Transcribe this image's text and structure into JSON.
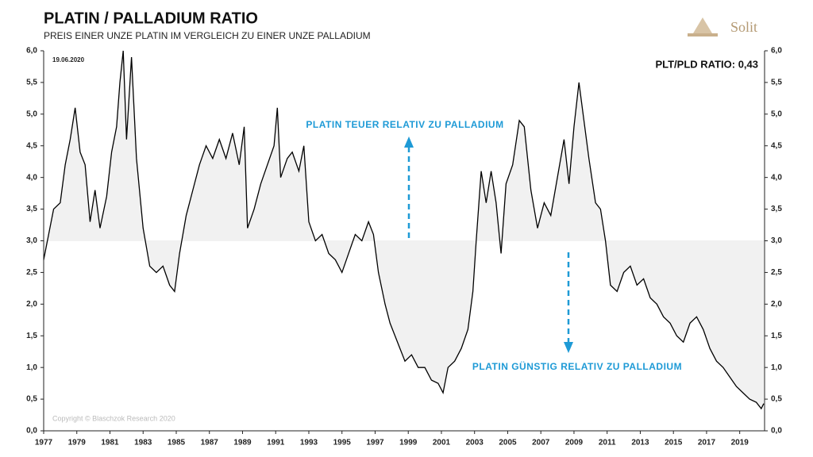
{
  "chart_data": {
    "type": "line",
    "title": "PLATIN / PALLADIUM RATIO",
    "subtitle": "PREIS EINER UNZE PLATIN IM VERGLEICH ZU EINER UNZE PALLADIUM",
    "date": "19.06.2020",
    "ratio_label": "PLT/PLD RATIO: 0,43",
    "copyright": "Copyright © Blaschzok Research 2020",
    "logo": "Solit",
    "annotations": [
      "PLATIN TEUER RELATIV ZU PALLADIUM",
      "PLATIN GÜNSTIG RELATIV ZU PALLADIUM"
    ],
    "annotation_color": "#1e9ad6",
    "fill_baseline": 3,
    "fill_color": "#f1f1f1",
    "xlim": [
      1977,
      2020.5
    ],
    "xticks": [
      1977,
      1979,
      1981,
      1983,
      1985,
      1987,
      1989,
      1991,
      1993,
      1995,
      1997,
      1999,
      2001,
      2003,
      2005,
      2007,
      2009,
      2011,
      2013,
      2015,
      2017,
      2019
    ],
    "ylim": [
      0,
      6
    ],
    "yticks": [
      {
        "value": 0,
        "label": "0,0"
      },
      {
        "value": 0.5,
        "label": "0,5"
      },
      {
        "value": 1,
        "label": "1,0"
      },
      {
        "value": 1.5,
        "label": "1,5"
      },
      {
        "value": 2,
        "label": "2,0"
      },
      {
        "value": 2.5,
        "label": "2,5"
      },
      {
        "value": 3,
        "label": "3,0"
      },
      {
        "value": 3.5,
        "label": "3,5"
      },
      {
        "value": 4,
        "label": "4,0"
      },
      {
        "value": 4.5,
        "label": "4,5"
      },
      {
        "value": 5,
        "label": "5,0"
      },
      {
        "value": 5.5,
        "label": "5,5"
      },
      {
        "value": 6,
        "label": "6,0"
      }
    ],
    "series": [
      {
        "color": "#000000",
        "x": [
          1977.0,
          1977.3,
          1977.6,
          1978.0,
          1978.3,
          1978.6,
          1978.9,
          1979.2,
          1979.5,
          1979.8,
          1980.1,
          1980.4,
          1980.8,
          1981.1,
          1981.4,
          1981.6,
          1981.8,
          1982.0,
          1982.3,
          1982.6,
          1983.0,
          1983.4,
          1983.8,
          1984.2,
          1984.6,
          1984.9,
          1985.2,
          1985.6,
          1986.0,
          1986.4,
          1986.8,
          1987.2,
          1987.6,
          1988.0,
          1988.4,
          1988.8,
          1989.1,
          1989.3,
          1989.7,
          1990.1,
          1990.5,
          1990.9,
          1991.1,
          1991.3,
          1991.7,
          1992.0,
          1992.4,
          1992.7,
          1993.0,
          1993.4,
          1993.8,
          1994.2,
          1994.6,
          1995.0,
          1995.4,
          1995.8,
          1996.2,
          1996.6,
          1996.9,
          1997.2,
          1997.6,
          1997.9,
          1998.2,
          1998.5,
          1998.8,
          1999.2,
          1999.6,
          2000.0,
          2000.4,
          2000.8,
          2001.1,
          2001.4,
          2001.8,
          2002.2,
          2002.6,
          2002.9,
          2003.1,
          2003.4,
          2003.7,
          2004.0,
          2004.3,
          2004.6,
          2004.9,
          2005.3,
          2005.7,
          2006.0,
          2006.4,
          2006.8,
          2007.2,
          2007.6,
          2008.0,
          2008.4,
          2008.7,
          2009.0,
          2009.3,
          2009.6,
          2009.9,
          2010.3,
          2010.6,
          2010.9,
          2011.2,
          2011.6,
          2012.0,
          2012.4,
          2012.8,
          2013.2,
          2013.6,
          2014.0,
          2014.4,
          2014.8,
          2015.2,
          2015.6,
          2016.0,
          2016.4,
          2016.8,
          2017.2,
          2017.6,
          2018.0,
          2018.4,
          2018.8,
          2019.2,
          2019.6,
          2020.0,
          2020.3,
          2020.45
        ],
        "values": [
          2.7,
          3.1,
          3.5,
          3.6,
          4.2,
          4.6,
          5.1,
          4.4,
          4.2,
          3.3,
          3.8,
          3.2,
          3.7,
          4.4,
          4.8,
          5.5,
          6.0,
          4.6,
          5.9,
          4.3,
          3.2,
          2.6,
          2.5,
          2.6,
          2.3,
          2.2,
          2.8,
          3.4,
          3.8,
          4.2,
          4.5,
          4.3,
          4.6,
          4.3,
          4.7,
          4.2,
          4.8,
          3.2,
          3.5,
          3.9,
          4.2,
          4.5,
          5.1,
          4.0,
          4.3,
          4.4,
          4.1,
          4.5,
          3.3,
          3.0,
          3.1,
          2.8,
          2.7,
          2.5,
          2.8,
          3.1,
          3.0,
          3.3,
          3.1,
          2.5,
          2.0,
          1.7,
          1.5,
          1.3,
          1.1,
          1.2,
          1.0,
          1.0,
          0.8,
          0.75,
          0.6,
          1.0,
          1.1,
          1.3,
          1.6,
          2.2,
          3.0,
          4.1,
          3.6,
          4.1,
          3.6,
          2.8,
          3.9,
          4.2,
          4.9,
          4.8,
          3.8,
          3.2,
          3.6,
          3.4,
          4.0,
          4.6,
          3.9,
          4.8,
          5.5,
          4.9,
          4.3,
          3.6,
          3.5,
          3.0,
          2.3,
          2.2,
          2.5,
          2.6,
          2.3,
          2.4,
          2.1,
          2.0,
          1.8,
          1.7,
          1.5,
          1.4,
          1.7,
          1.8,
          1.6,
          1.3,
          1.1,
          1.0,
          0.85,
          0.7,
          0.6,
          0.5,
          0.45,
          0.35,
          0.43
        ]
      }
    ]
  }
}
